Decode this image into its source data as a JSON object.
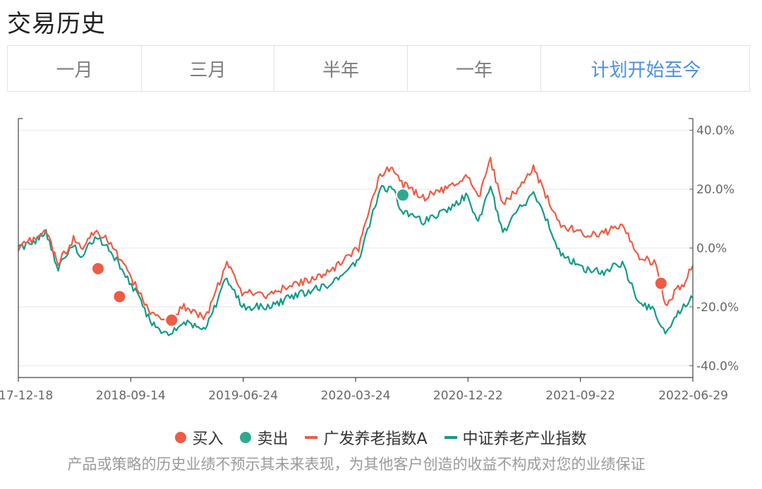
{
  "page": {
    "title": "交易历史"
  },
  "tabs": [
    {
      "label": "一月",
      "active": false
    },
    {
      "label": "三月",
      "active": false
    },
    {
      "label": "半年",
      "active": false
    },
    {
      "label": "一年",
      "active": false
    },
    {
      "label": "计划开始至今",
      "active": true
    }
  ],
  "legend": {
    "buy": "买入",
    "sell": "卖出",
    "fund": "广发养老指数A",
    "index": "中证养老产业指数"
  },
  "disclaimer": "产品或策略的历史业绩不预示其未来表现，为其他客户创造的收益不构成对您的业绩保证",
  "colors": {
    "fund": "#ef5b44",
    "index": "#129b87",
    "buy": "#ef5b44",
    "sell": "#2daa8d",
    "accent": "#4a90e2"
  },
  "chart_data": {
    "type": "line",
    "x_ticks": [
      "17-12-18",
      "2018-09-14",
      "2019-06-24",
      "2020-03-24",
      "2020-12-22",
      "2021-09-22",
      "2022-06-29"
    ],
    "y_ticks": [
      "40.0%",
      "20.0%",
      "0.0%",
      "-20.0%",
      "-40.0%"
    ],
    "y_tick_values": [
      40,
      20,
      0,
      -20,
      -40
    ],
    "ylim": [
      -44,
      44
    ],
    "y_axis_position": "right",
    "x_unit": "trading-day index",
    "x_range": [
      0,
      1100
    ],
    "grid": true,
    "series": [
      {
        "name": "广发养老指数A",
        "color": "#ef5b44",
        "x": [
          0,
          25,
          45,
          65,
          90,
          105,
          125,
          145,
          175,
          200,
          215,
          245,
          270,
          305,
          340,
          365,
          410,
          440,
          470,
          510,
          555,
          590,
          610,
          625,
          660,
          705,
          730,
          750,
          770,
          790,
          815,
          840,
          860,
          885,
          920,
          955,
          985,
          1010,
          1040,
          1055,
          1070,
          1085,
          1100
        ],
        "values": [
          0,
          3,
          6,
          -5,
          3,
          -1,
          6,
          3,
          -7,
          -16,
          -22,
          -25,
          -20,
          -24,
          -5,
          -15,
          -16,
          -13,
          -11,
          -8,
          0,
          25,
          28,
          22,
          17,
          21,
          25,
          17,
          30,
          15,
          20,
          27,
          18,
          8,
          5,
          5,
          8,
          -3,
          -5,
          -20,
          -15,
          -12,
          -6
        ]
      },
      {
        "name": "中证养老产业指数",
        "color": "#129b87",
        "x": [
          0,
          25,
          45,
          65,
          90,
          105,
          125,
          145,
          175,
          200,
          215,
          245,
          270,
          305,
          340,
          365,
          410,
          440,
          470,
          510,
          555,
          590,
          610,
          625,
          660,
          705,
          730,
          750,
          770,
          790,
          815,
          840,
          860,
          885,
          920,
          955,
          985,
          1010,
          1040,
          1055,
          1070,
          1085,
          1100
        ],
        "values": [
          0,
          2,
          5,
          -7,
          1,
          -3,
          4,
          1,
          -9,
          -18,
          -25,
          -30,
          -25,
          -28,
          -10,
          -20,
          -20,
          -17,
          -15,
          -12,
          -4,
          20,
          20,
          13,
          9,
          13,
          18,
          8,
          21,
          5,
          13,
          18,
          10,
          -2,
          -7,
          -8,
          -5,
          -18,
          -22,
          -30,
          -24,
          -20,
          -17
        ]
      }
    ],
    "markers": [
      {
        "type": "buy",
        "x": 130,
        "y": -7
      },
      {
        "type": "buy",
        "x": 165,
        "y": -16.5
      },
      {
        "type": "buy",
        "x": 250,
        "y": -24.5
      },
      {
        "type": "sell",
        "x": 627,
        "y": 18
      },
      {
        "type": "buy",
        "x": 1048,
        "y": -12
      }
    ]
  }
}
